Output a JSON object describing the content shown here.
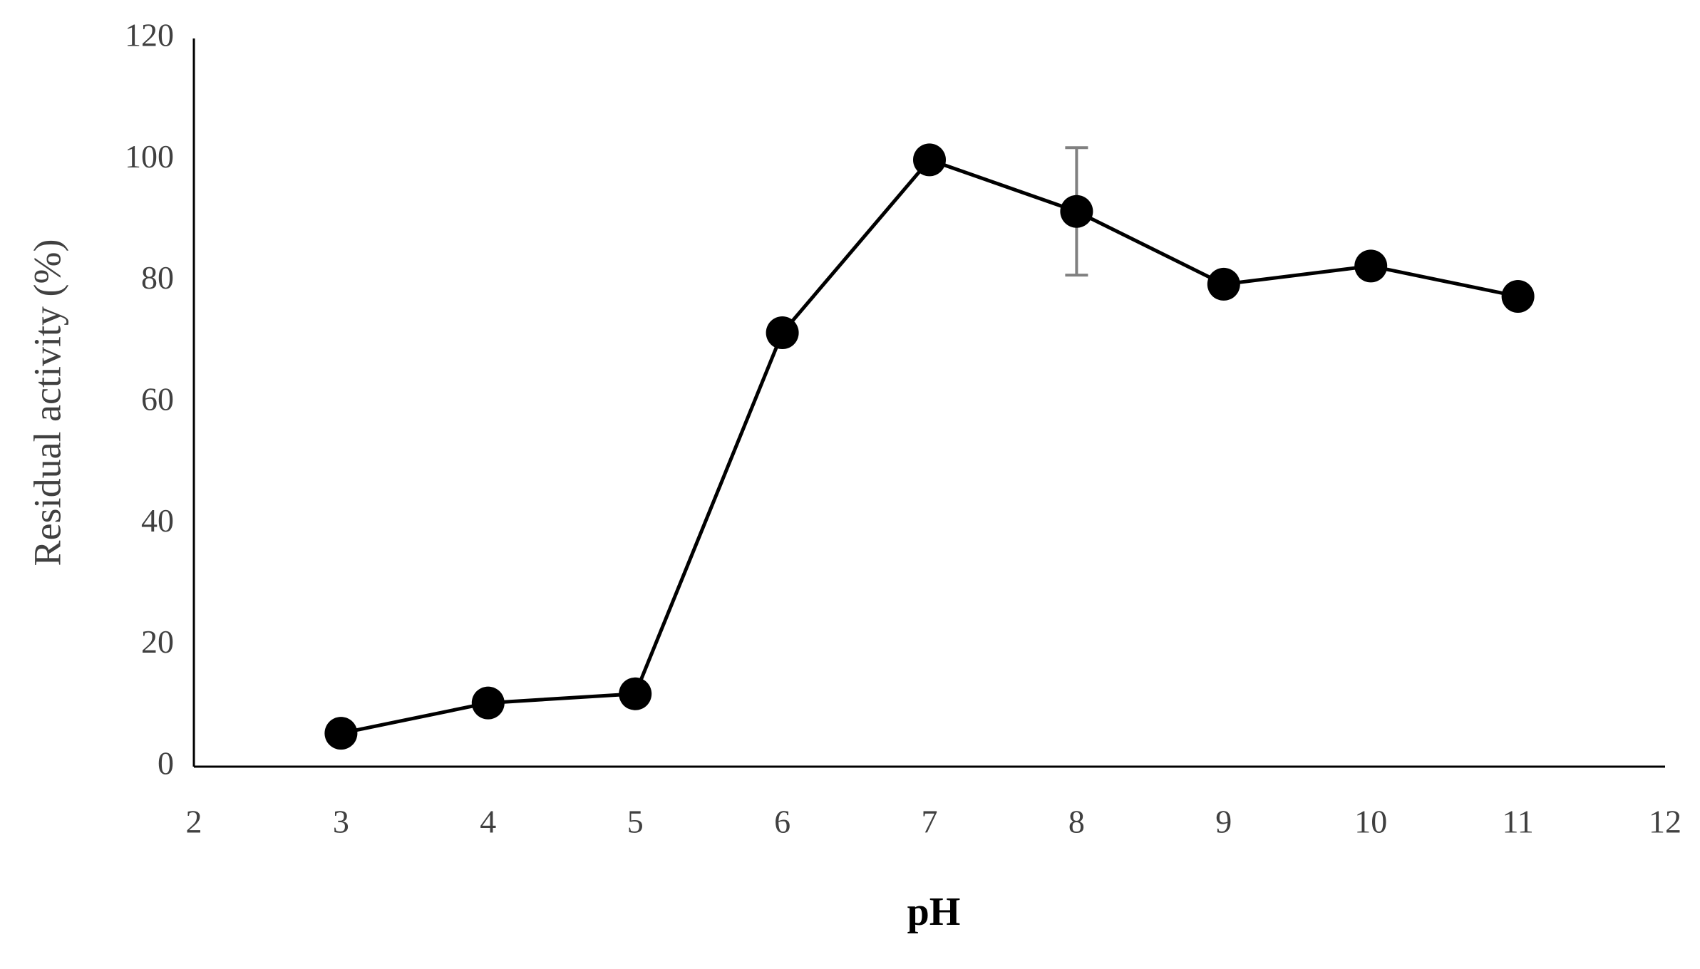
{
  "chart_data": {
    "type": "line",
    "x_label": "pH",
    "y_label": "Residual activity (%)",
    "x": [
      3,
      4,
      5,
      6,
      7,
      8,
      9,
      10,
      11
    ],
    "series": [
      {
        "color": "#000000",
        "values": [
          5.5,
          10.5,
          12,
          71.5,
          100,
          91.5,
          79.5,
          82.5,
          77.5
        ],
        "errors": [
          null,
          null,
          null,
          null,
          null,
          10.5,
          null,
          null,
          null
        ],
        "error_color": "#808080"
      }
    ],
    "xlim": [
      2,
      12
    ],
    "xticks": [
      2,
      3,
      4,
      5,
      6,
      7,
      8,
      9,
      10,
      11,
      12
    ],
    "ylim": [
      0,
      120
    ],
    "yticks": [
      0,
      20,
      40,
      60,
      80,
      100,
      120
    ],
    "grid": false
  }
}
